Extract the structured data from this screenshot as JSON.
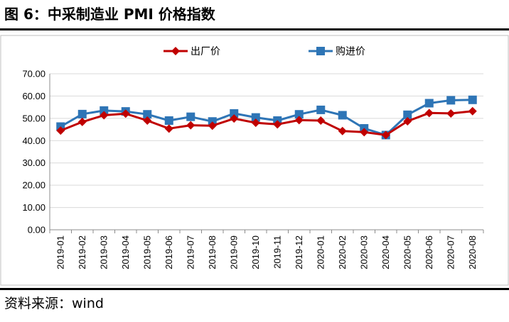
{
  "figure": {
    "title": "图 6：中采制造业 PMI 价格指数",
    "source": "资料来源：wind"
  },
  "colors": {
    "series_a": "#C00000",
    "series_b": "#2E75B6",
    "grid": "#d9d9d9",
    "axis": "#8c8c8c"
  },
  "chart_data": {
    "type": "line",
    "title": "",
    "xlabel": "",
    "ylabel": "",
    "ylim": [
      0,
      70
    ],
    "yticks": [
      "0.00",
      "10.00",
      "20.00",
      "30.00",
      "40.00",
      "50.00",
      "60.00",
      "70.00"
    ],
    "grid": true,
    "legend": "top-center",
    "categories": [
      "2019-01",
      "2019-02",
      "2019-03",
      "2019-04",
      "2019-05",
      "2019-06",
      "2019-07",
      "2019-08",
      "2019-09",
      "2019-10",
      "2019-11",
      "2019-12",
      "2020-01",
      "2020-02",
      "2020-03",
      "2020-04",
      "2020-05",
      "2020-06",
      "2020-07",
      "2020-08"
    ],
    "series": [
      {
        "name": "出厂价",
        "marker": "diamond",
        "color": "#C00000",
        "values": [
          44.5,
          48.4,
          51.4,
          52.1,
          49.0,
          45.4,
          46.9,
          46.7,
          49.9,
          48.0,
          47.3,
          49.2,
          49.0,
          44.3,
          43.8,
          42.5,
          48.7,
          52.4,
          52.2,
          53.2
        ]
      },
      {
        "name": "购进价",
        "marker": "square",
        "color": "#2E75B6",
        "values": [
          46.3,
          51.9,
          53.5,
          53.1,
          51.8,
          49.0,
          50.7,
          48.6,
          52.2,
          50.4,
          49.0,
          51.8,
          53.8,
          51.4,
          45.5,
          42.5,
          51.6,
          56.8,
          58.1,
          58.3
        ]
      }
    ]
  }
}
